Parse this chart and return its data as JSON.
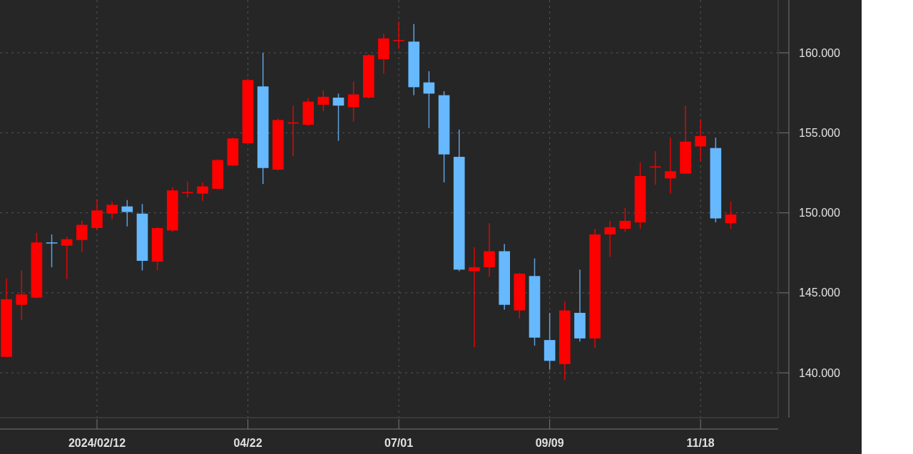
{
  "chart_data": {
    "type": "candlestick",
    "x": [
      "2024-01-01",
      "2024-01-08",
      "2024-01-15",
      "2024-01-22",
      "2024-01-29",
      "2024-02-05",
      "2024-02-12",
      "2024-02-19",
      "2024-02-26",
      "2024-03-04",
      "2024-03-11",
      "2024-03-18",
      "2024-03-25",
      "2024-04-01",
      "2024-04-08",
      "2024-04-15",
      "2024-04-22",
      "2024-04-29",
      "2024-05-06",
      "2024-05-13",
      "2024-05-20",
      "2024-05-27",
      "2024-06-03",
      "2024-06-10",
      "2024-06-17",
      "2024-06-24",
      "2024-07-01",
      "2024-07-08",
      "2024-07-15",
      "2024-07-22",
      "2024-07-29",
      "2024-08-05",
      "2024-08-12",
      "2024-08-19",
      "2024-08-26",
      "2024-09-02",
      "2024-09-09",
      "2024-09-16",
      "2024-09-23",
      "2024-09-30",
      "2024-10-07",
      "2024-10-14",
      "2024-10-21",
      "2024-10-28",
      "2024-11-04",
      "2024-11-11",
      "2024-11-18",
      "2024-11-25",
      "2024-12-02"
    ],
    "ohlc": [
      [
        141.0,
        145.9,
        141.0,
        144.6
      ],
      [
        144.25,
        146.4,
        143.3,
        144.9
      ],
      [
        144.7,
        148.75,
        144.65,
        148.15
      ],
      [
        148.15,
        148.65,
        146.6,
        148.1
      ],
      [
        147.95,
        148.5,
        145.85,
        148.35
      ],
      [
        148.3,
        149.5,
        147.55,
        149.25
      ],
      [
        149.05,
        150.85,
        148.9,
        150.15
      ],
      [
        149.95,
        150.7,
        149.6,
        150.5
      ],
      [
        150.4,
        150.8,
        149.15,
        150.05
      ],
      [
        149.95,
        150.55,
        146.4,
        147.0
      ],
      [
        146.95,
        149.1,
        146.4,
        149.05
      ],
      [
        148.9,
        151.6,
        148.8,
        151.4
      ],
      [
        151.25,
        151.95,
        150.95,
        151.3
      ],
      [
        151.2,
        151.9,
        150.75,
        151.65
      ],
      [
        151.5,
        153.35,
        151.5,
        153.3
      ],
      [
        152.95,
        154.7,
        152.95,
        154.65
      ],
      [
        154.35,
        158.4,
        154.35,
        158.3
      ],
      [
        157.9,
        160.0,
        151.8,
        152.8
      ],
      [
        152.7,
        155.9,
        152.65,
        155.8
      ],
      [
        155.6,
        156.7,
        153.55,
        155.65
      ],
      [
        155.5,
        157.15,
        155.45,
        156.95
      ],
      [
        156.75,
        157.65,
        156.35,
        157.25
      ],
      [
        157.2,
        157.45,
        154.5,
        156.7
      ],
      [
        156.6,
        158.2,
        155.7,
        157.4
      ],
      [
        157.2,
        159.9,
        157.15,
        159.85
      ],
      [
        159.6,
        161.2,
        158.7,
        160.9
      ],
      [
        160.75,
        161.95,
        160.25,
        160.8
      ],
      [
        160.7,
        161.8,
        157.35,
        157.85
      ],
      [
        158.15,
        158.85,
        155.3,
        157.45
      ],
      [
        157.35,
        157.6,
        151.9,
        153.65
      ],
      [
        153.5,
        155.2,
        146.35,
        146.45
      ],
      [
        146.35,
        147.85,
        141.6,
        146.6
      ],
      [
        146.6,
        149.35,
        146.0,
        147.6
      ],
      [
        147.6,
        148.05,
        143.95,
        144.25
      ],
      [
        143.9,
        146.25,
        143.4,
        146.2
      ],
      [
        146.05,
        147.15,
        141.7,
        142.2
      ],
      [
        142.05,
        143.75,
        140.2,
        140.75
      ],
      [
        140.55,
        144.45,
        139.55,
        143.9
      ],
      [
        143.75,
        146.45,
        141.95,
        142.15
      ],
      [
        142.15,
        149.0,
        141.55,
        148.65
      ],
      [
        148.65,
        149.5,
        147.25,
        149.1
      ],
      [
        149.0,
        150.3,
        148.8,
        149.5
      ],
      [
        149.4,
        153.15,
        149.0,
        152.3
      ],
      [
        152.85,
        153.85,
        151.75,
        152.9
      ],
      [
        152.15,
        154.7,
        151.2,
        152.6
      ],
      [
        152.45,
        156.7,
        152.45,
        154.45
      ],
      [
        154.15,
        155.85,
        153.25,
        154.8
      ],
      [
        154.05,
        154.7,
        149.4,
        149.65
      ],
      [
        149.35,
        150.7,
        149.0,
        149.9
      ]
    ],
    "colors": [
      "#ff0000",
      "#ff0000",
      "#ff0000",
      "#66b8ff",
      "#ff0000",
      "#ff0000",
      "#ff0000",
      "#ff0000",
      "#66b8ff",
      "#66b8ff",
      "#ff0000",
      "#ff0000",
      "#ff0000",
      "#ff0000",
      "#ff0000",
      "#ff0000",
      "#ff0000",
      "#66b8ff",
      "#ff0000",
      "#ff0000",
      "#ff0000",
      "#ff0000",
      "#66b8ff",
      "#ff0000",
      "#ff0000",
      "#ff0000",
      "#ff0000",
      "#66b8ff",
      "#66b8ff",
      "#66b8ff",
      "#66b8ff",
      "#ff0000",
      "#ff0000",
      "#66b8ff",
      "#ff0000",
      "#66b8ff",
      "#66b8ff",
      "#ff0000",
      "#66b8ff",
      "#ff0000",
      "#ff0000",
      "#ff0000",
      "#ff0000",
      "#ff0000",
      "#ff0000",
      "#ff0000",
      "#ff0000",
      "#66b8ff",
      "#ff0000"
    ],
    "xlim": [
      "2023-12-29",
      "2024-12-24"
    ],
    "xticks": [
      {
        "value": "2024-02-12",
        "label": "2024/02/12"
      },
      {
        "value": "2024-04-22",
        "label": "04/22"
      },
      {
        "value": "2024-07-01",
        "label": "07/01"
      },
      {
        "value": "2024-09-09",
        "label": "09/09"
      },
      {
        "value": "2024-11-18",
        "label": "11/18"
      }
    ],
    "ylim": [
      137.2,
      163.3
    ],
    "yticks": [
      {
        "value": 140,
        "label": "140.000"
      },
      {
        "value": 145,
        "label": "145.000"
      },
      {
        "value": 150,
        "label": "150.000"
      },
      {
        "value": 155,
        "label": "155.000"
      },
      {
        "value": 160,
        "label": "160.000"
      }
    ],
    "grid": true
  }
}
